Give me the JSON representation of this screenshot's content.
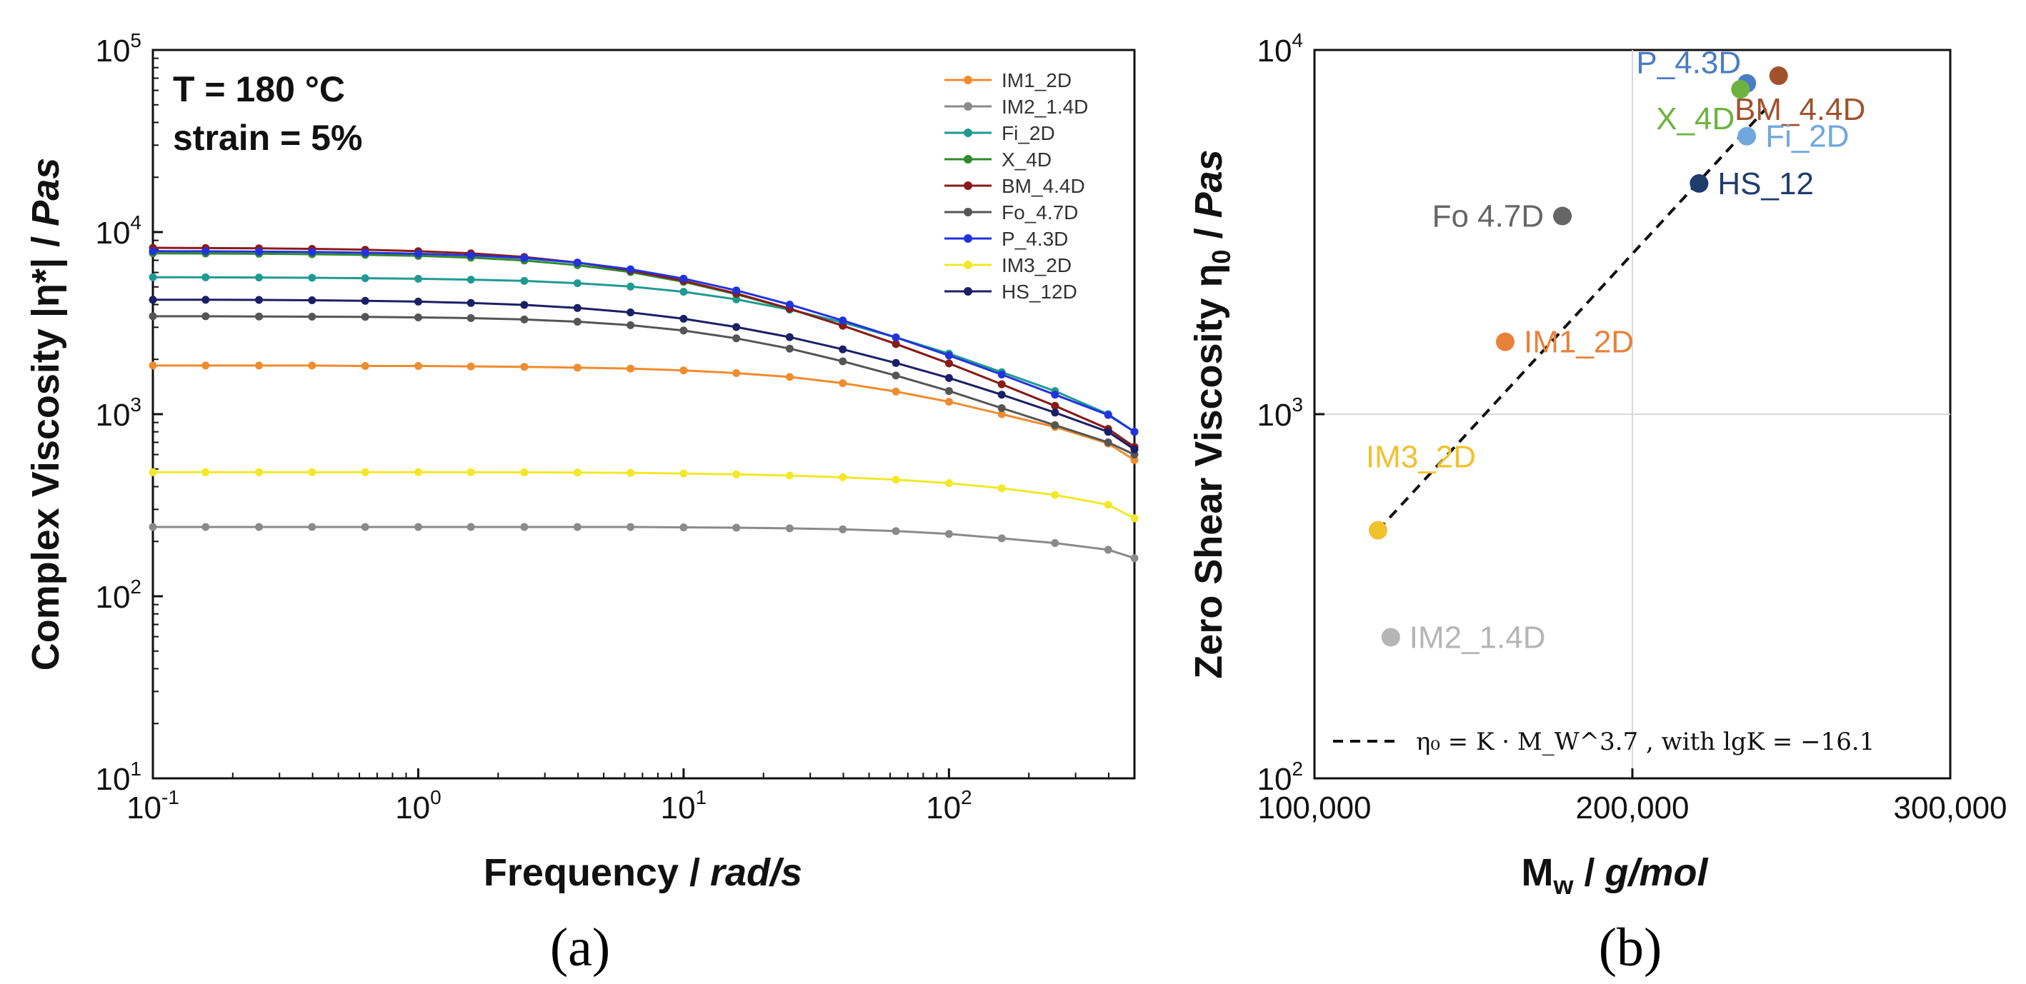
{
  "panel_labels": {
    "a": "(a)",
    "b": "(b)"
  },
  "chart_data": [
    {
      "type": "line",
      "panel": "a",
      "title": "",
      "annotations": {
        "temperature": "T = 180 °C",
        "strain": "strain = 5%"
      },
      "xlabel": {
        "main": "Frequency /",
        "unit": "rad/s"
      },
      "ylabel": {
        "main": "Complex Viscosity |η*|  /",
        "unit": "Pas"
      },
      "xscale": "log",
      "yscale": "log",
      "xlim": [
        0.1,
        500
      ],
      "ylim": [
        10,
        100000
      ],
      "x_ticks": [
        {
          "value": 0.1,
          "base": "10",
          "exp": "-1"
        },
        {
          "value": 1,
          "base": "10",
          "exp": "0"
        },
        {
          "value": 10,
          "base": "10",
          "exp": "1"
        },
        {
          "value": 100,
          "base": "10",
          "exp": "2"
        }
      ],
      "y_ticks": [
        {
          "value": 10,
          "base": "10",
          "exp": "1"
        },
        {
          "value": 100,
          "base": "10",
          "exp": "2"
        },
        {
          "value": 1000,
          "base": "10",
          "exp": "3"
        },
        {
          "value": 10000,
          "base": "10",
          "exp": "4"
        },
        {
          "value": 100000,
          "base": "10",
          "exp": "5"
        }
      ],
      "legend_position": "top-right",
      "x": [
        0.1,
        0.158,
        0.251,
        0.398,
        0.631,
        1,
        1.58,
        2.51,
        3.98,
        6.31,
        10,
        15.8,
        25.1,
        39.8,
        63.1,
        100,
        158,
        251,
        398,
        500
      ],
      "series": [
        {
          "name": "IM1_2D",
          "color": "#f08c2e",
          "values": [
            1850,
            1850,
            1850,
            1850,
            1840,
            1840,
            1830,
            1820,
            1800,
            1780,
            1740,
            1680,
            1600,
            1480,
            1330,
            1170,
            1000,
            850,
            690,
            560
          ]
        },
        {
          "name": "IM2_1.4D",
          "color": "#8a8a8a",
          "values": [
            240,
            240,
            240,
            240,
            240,
            240,
            240,
            240,
            240,
            240,
            239,
            238,
            236,
            233,
            228,
            220,
            208,
            196,
            180,
            162
          ]
        },
        {
          "name": "Fi_2D",
          "color": "#1f9a93",
          "values": [
            5650,
            5640,
            5630,
            5610,
            5580,
            5540,
            5480,
            5390,
            5240,
            5020,
            4700,
            4270,
            3750,
            3190,
            2640,
            2150,
            1700,
            1340,
            1000,
            800
          ]
        },
        {
          "name": "X_4D",
          "color": "#2e8b2e",
          "values": [
            7650,
            7630,
            7600,
            7560,
            7500,
            7400,
            7240,
            6980,
            6580,
            6030,
            5330,
            4560,
            3780,
            3060,
            2430,
            1900,
            1460,
            1110,
            830,
            660
          ]
        },
        {
          "name": "BM_4.4D",
          "color": "#8b1a1a",
          "values": [
            8200,
            8170,
            8140,
            8090,
            8000,
            7860,
            7640,
            7300,
            6800,
            6150,
            5400,
            4600,
            3800,
            3060,
            2430,
            1900,
            1460,
            1110,
            830,
            660
          ]
        },
        {
          "name": "Fo_4.7D",
          "color": "#555555",
          "values": [
            3450,
            3450,
            3440,
            3430,
            3420,
            3400,
            3370,
            3310,
            3220,
            3080,
            2880,
            2610,
            2290,
            1950,
            1630,
            1340,
            1080,
            870,
            700,
            600
          ]
        },
        {
          "name": "P_4.3D",
          "color": "#2233dd",
          "values": [
            7850,
            7840,
            7810,
            7770,
            7700,
            7600,
            7450,
            7200,
            6800,
            6250,
            5550,
            4780,
            4000,
            3270,
            2640,
            2100,
            1650,
            1280,
            990,
            800
          ]
        },
        {
          "name": "IM3_2D",
          "color": "#f2e828",
          "values": [
            480,
            480,
            480,
            480,
            480,
            480,
            480,
            479,
            478,
            476,
            472,
            467,
            460,
            450,
            437,
            418,
            392,
            360,
            318,
            268
          ]
        },
        {
          "name": "HS_12D",
          "color": "#1a1f66",
          "values": [
            4250,
            4250,
            4240,
            4220,
            4190,
            4150,
            4080,
            3980,
            3830,
            3620,
            3340,
            3010,
            2650,
            2270,
            1910,
            1580,
            1280,
            1020,
            800,
            640
          ]
        }
      ]
    },
    {
      "type": "scatter",
      "panel": "b",
      "title": "",
      "xlabel": {
        "main": "M",
        "sub": "w",
        "sep": " /",
        "unit": "g/mol"
      },
      "ylabel": {
        "main": "Zero Shear Viscosity η",
        "sub": "0",
        "sep": "  /",
        "unit": "Pas"
      },
      "xscale": "linear",
      "yscale": "log",
      "xlim": [
        100000,
        300000
      ],
      "ylim": [
        100,
        10000
      ],
      "grid": true,
      "x_ticks": [
        {
          "value": 100000,
          "label": "100,000"
        },
        {
          "value": 200000,
          "label": "200,000"
        },
        {
          "value": 300000,
          "label": "300,000"
        }
      ],
      "y_ticks": [
        {
          "value": 100,
          "base": "10",
          "exp": "2"
        },
        {
          "value": 1000,
          "base": "10",
          "exp": "3"
        },
        {
          "value": 10000,
          "base": "10",
          "exp": "4"
        }
      ],
      "points": [
        {
          "label": "P_4.3D",
          "x": 236000,
          "y": 8100,
          "color": "#4a7cc4",
          "anchor": "above-left"
        },
        {
          "label": "X_4D",
          "x": 234000,
          "y": 7800,
          "color": "#6cb33f",
          "anchor": "below-left"
        },
        {
          "label": "BM_4.4D",
          "x": 246000,
          "y": 8500,
          "color": "#a0522d",
          "anchor": "below"
        },
        {
          "label": "Fi_2D",
          "x": 236000,
          "y": 5800,
          "color": "#6fa8dc",
          "anchor": "right"
        },
        {
          "label": "HS_12",
          "x": 221000,
          "y": 4300,
          "color": "#1f3c6e",
          "anchor": "right"
        },
        {
          "label": "Fo  4.7D",
          "x": 178000,
          "y": 3500,
          "color": "#666666",
          "anchor": "left"
        },
        {
          "label": "IM1_2D",
          "x": 160000,
          "y": 1580,
          "color": "#e8823a",
          "anchor": "right"
        },
        {
          "label": "IM3_2D",
          "x": 120000,
          "y": 480,
          "color": "#f2c12e",
          "anchor": "above"
        },
        {
          "label": "IM2_1.4D",
          "x": 124000,
          "y": 244,
          "color": "#b5b5b5",
          "anchor": "right"
        }
      ],
      "fit_line": {
        "style": "dashed",
        "color": "#111111",
        "x": [
          120000,
          242000
        ],
        "y": [
          480,
          6900
        ],
        "legend_label": "η₀ = K · M_W^3.7 , with lgK = −16.1",
        "legend_position": "bottom"
      }
    }
  ]
}
